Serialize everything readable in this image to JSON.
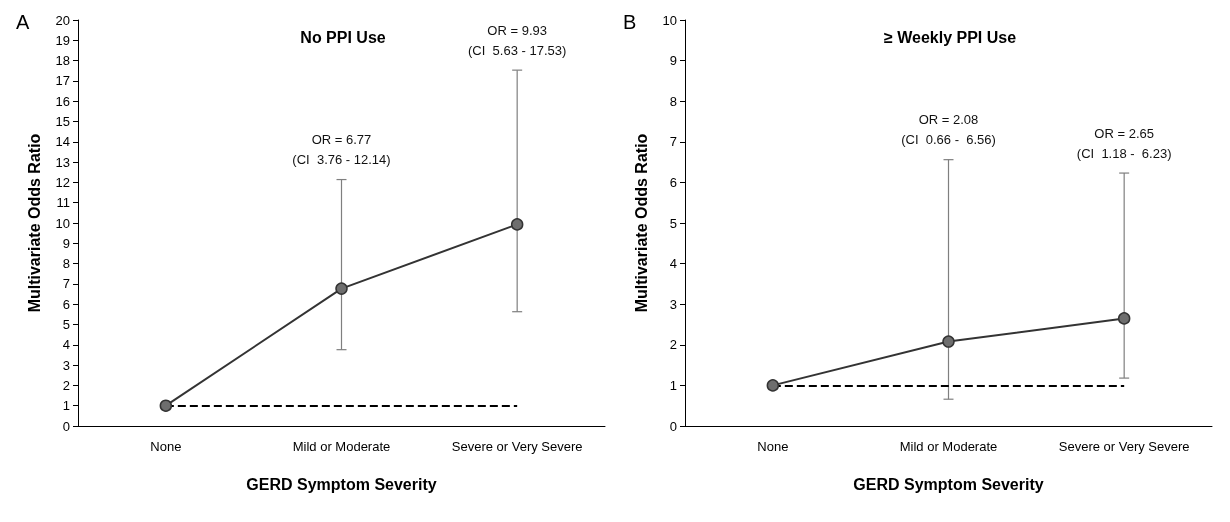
{
  "chart_data": [
    {
      "type": "line",
      "title": "No PPI Use",
      "xlabel": "GERD Symptom Severity",
      "ylabel": "Multivariate Odds Ratio",
      "categories": [
        "None",
        "Mild or Moderate",
        "Severe or Very Severe"
      ],
      "series": [
        {
          "color": "#333333",
          "values": [
            1,
            6.77,
            9.93
          ],
          "errors": [
            null,
            [
              3.76,
              12.14
            ],
            [
              5.63,
              17.53
            ]
          ]
        }
      ],
      "ylim": [
        0,
        20
      ],
      "yticks": [
        0,
        1,
        2,
        3,
        4,
        5,
        6,
        7,
        8,
        9,
        10,
        11,
        12,
        13,
        14,
        15,
        16,
        17,
        18,
        19,
        20
      ],
      "grid": false,
      "marker": "circle",
      "line_style": "solid",
      "ref_lines": [
        {
          "axis": "y",
          "value": 1,
          "line_style": "dashed",
          "color": "#000000"
        }
      ],
      "annotations": [
        "A",
        {
          "text": "OR = 6.77\n(CI  3.76 - 12.14)",
          "x": "Mild or Moderate",
          "y": 12.14
        },
        {
          "text": "OR = 9.93\n(CI  5.63 - 17.53)",
          "x": "Severe or Very Severe",
          "y": 17.53
        }
      ]
    },
    {
      "type": "line",
      "title": "≥ Weekly PPI Use",
      "xlabel": "GERD Symptom Severity",
      "ylabel": "Multivariate Odds Ratio",
      "categories": [
        "None",
        "Mild or Moderate",
        "Severe or Very Severe"
      ],
      "series": [
        {
          "color": "#333333",
          "values": [
            1,
            2.08,
            2.65
          ],
          "errors": [
            null,
            [
              0.66,
              6.56
            ],
            [
              1.18,
              6.23
            ]
          ]
        }
      ],
      "ylim": [
        0,
        10
      ],
      "yticks": [
        0,
        1,
        2,
        3,
        4,
        5,
        6,
        7,
        8,
        9,
        10
      ],
      "grid": false,
      "marker": "circle",
      "line_style": "solid",
      "ref_lines": [
        {
          "axis": "y",
          "value": 1,
          "line_style": "dashed",
          "color": "#000000"
        }
      ],
      "annotations": [
        "B",
        {
          "text": "OR = 2.08\n(CI  0.66 -  6.56)",
          "x": "Mild or Moderate",
          "y": 6.56
        },
        {
          "text": "OR = 2.65\n(CI  1.18 -  6.23)",
          "x": "Severe or Very Severe",
          "y": 6.23
        }
      ]
    }
  ]
}
